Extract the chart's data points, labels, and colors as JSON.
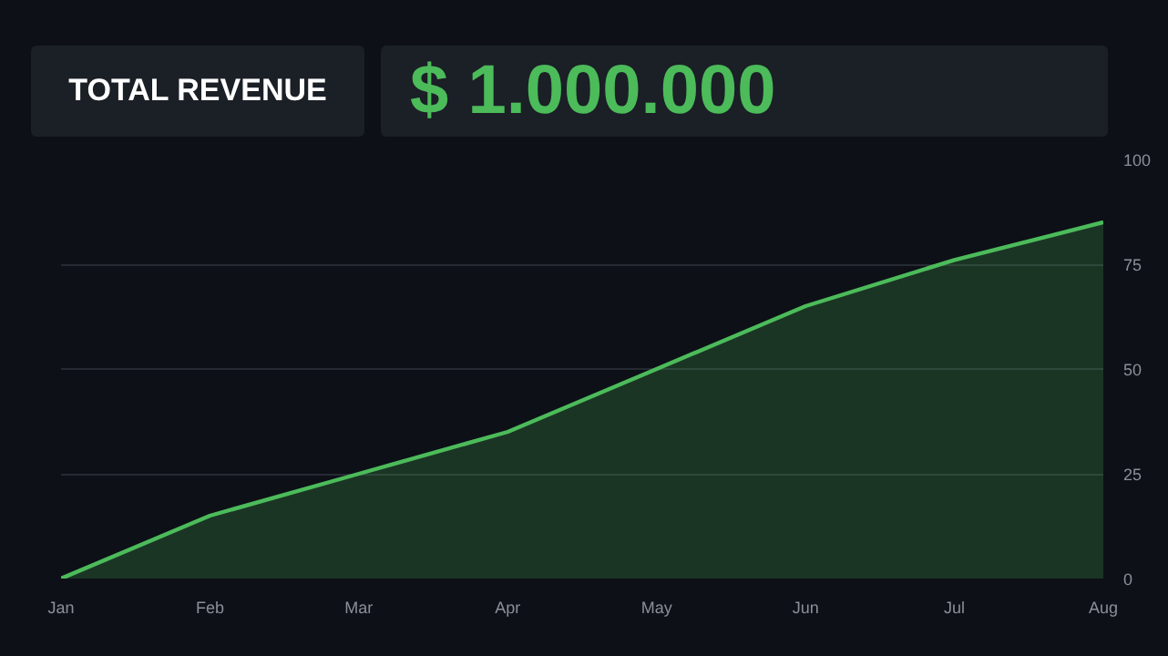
{
  "chart_data": {
    "type": "area",
    "title": "TOTAL REVENUE",
    "subtitle": "$ 1.000.000",
    "categories": [
      "Jan",
      "Feb",
      "Mar",
      "Apr",
      "May",
      "Jun",
      "Jul",
      "Aug"
    ],
    "series": [
      {
        "color": "#4cbb5a",
        "values": [
          0,
          15,
          25,
          35,
          50,
          65,
          76,
          85
        ]
      }
    ],
    "ylim": [
      0,
      100
    ],
    "yticks": [
      0,
      25,
      50,
      75,
      100
    ],
    "grid": "y"
  }
}
